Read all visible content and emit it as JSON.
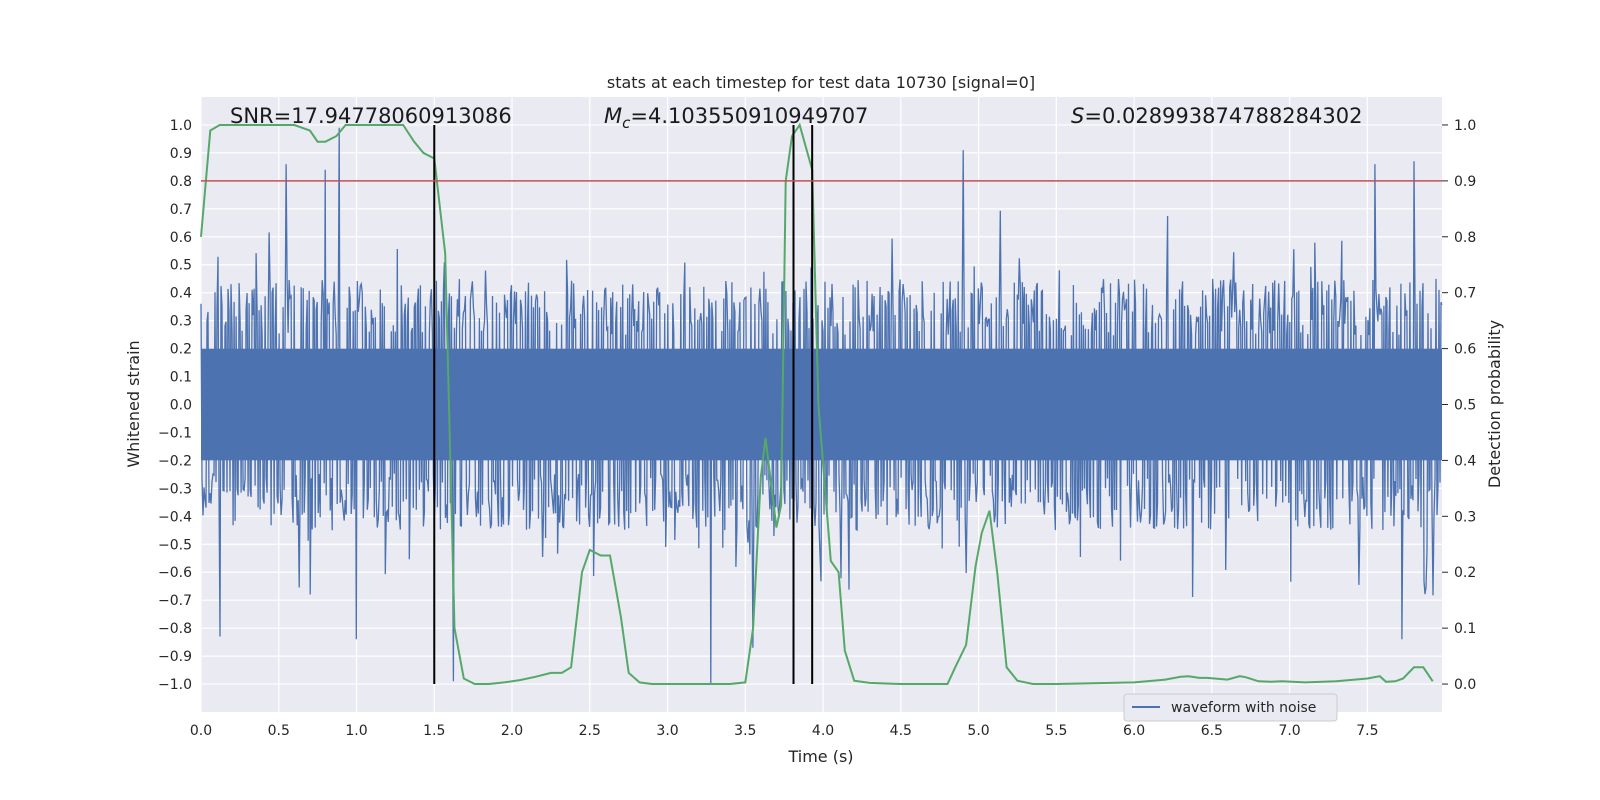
{
  "chart_data": {
    "type": "line",
    "title": "stats at each timestep for test data 10730 [signal=0]",
    "xlabel": "Time (s)",
    "ylabel": "Whitened strain",
    "y2label": "Detection probability",
    "xlim": [
      0.0,
      7.98
    ],
    "ylim": [
      -1.1,
      1.1
    ],
    "y2lim": [
      -0.05,
      1.05
    ],
    "xticks": [
      "0.0",
      "0.5",
      "1.0",
      "1.5",
      "2.0",
      "2.5",
      "3.0",
      "3.5",
      "4.0",
      "4.5",
      "5.0",
      "5.5",
      "6.0",
      "6.5",
      "7.0",
      "7.5"
    ],
    "xtick_values": [
      0,
      0.5,
      1,
      1.5,
      2,
      2.5,
      3,
      3.5,
      4,
      4.5,
      5,
      5.5,
      6,
      6.5,
      7,
      7.5
    ],
    "yticks": [
      "1.0",
      "0.9",
      "0.8",
      "0.7",
      "0.6",
      "0.5",
      "0.4",
      "0.3",
      "0.2",
      "0.1",
      "0.0",
      "−0.1",
      "−0.2",
      "−0.3",
      "−0.4",
      "−0.5",
      "−0.6",
      "−0.7",
      "−0.8",
      "−0.9",
      "−1.0"
    ],
    "ytick_values": [
      1.0,
      0.9,
      0.8,
      0.7,
      0.6,
      0.5,
      0.4,
      0.3,
      0.2,
      0.1,
      0.0,
      -0.1,
      -0.2,
      -0.3,
      -0.4,
      -0.5,
      -0.6,
      -0.7,
      -0.8,
      -0.9,
      -1.0
    ],
    "y2ticks": [
      "1.0",
      "0.9",
      "0.8",
      "0.7",
      "0.6",
      "0.5",
      "0.4",
      "0.3",
      "0.2",
      "0.1",
      "0.0"
    ],
    "y2tick_values": [
      1.0,
      0.9,
      0.8,
      0.7,
      0.6,
      0.5,
      0.4,
      0.3,
      0.2,
      0.1,
      0.0
    ],
    "grid": true,
    "legend_position": "lower-right",
    "annotations": {
      "snr": "SNR=17.94778060913086",
      "mc_symbol": "M",
      "mc_sub": "c",
      "mc_value": "=4.103550910949707",
      "s_symbol": "S",
      "s_value": "=0.028993874788284302"
    },
    "threshold": {
      "value": 0.9,
      "axis": "right",
      "color": "#c44e52"
    },
    "vertical_markers": [
      1.5,
      3.81,
      3.93
    ],
    "series": [
      {
        "name": "waveform with noise",
        "color": "#4c72b0",
        "axis": "left",
        "description_values": {
          "duration": 7.98,
          "envelope_positive_approx": 0.45,
          "envelope_negative_approx": -0.45,
          "notable_peaks": [
            [
              0.55,
              0.86
            ],
            [
              0.89,
              0.99
            ],
            [
              4.9,
              0.91
            ],
            [
              7.8,
              0.87
            ],
            [
              7.55,
              0.86
            ],
            [
              0.8,
              0.84
            ]
          ],
          "notable_troughs": [
            [
              0.12,
              -0.83
            ],
            [
              1.0,
              -0.84
            ],
            [
              1.62,
              -0.99
            ],
            [
              3.28,
              -1.0
            ],
            [
              7.72,
              -0.84
            ],
            [
              3.55,
              -0.87
            ]
          ]
        }
      },
      {
        "color": "#55a868",
        "axis": "right",
        "x": [
          0.0,
          0.06,
          0.12,
          0.2,
          0.3,
          0.4,
          0.5,
          0.6,
          0.7,
          0.75,
          0.8,
          0.87,
          0.93,
          1.0,
          1.1,
          1.2,
          1.3,
          1.37,
          1.43,
          1.5,
          1.57,
          1.63,
          1.69,
          1.76,
          1.85,
          1.95,
          2.05,
          2.15,
          2.25,
          2.32,
          2.38,
          2.45,
          2.5,
          2.57,
          2.63,
          2.7,
          2.75,
          2.82,
          2.9,
          3.0,
          3.1,
          3.2,
          3.3,
          3.4,
          3.5,
          3.55,
          3.6,
          3.63,
          3.67,
          3.7,
          3.73,
          3.76,
          3.8,
          3.85,
          3.89,
          3.93,
          3.97,
          4.05,
          4.1,
          4.14,
          4.2,
          4.3,
          4.5,
          4.7,
          4.8,
          4.85,
          4.92,
          4.98,
          5.02,
          5.07,
          5.12,
          5.18,
          5.25,
          5.35,
          5.5,
          6.0,
          6.2,
          6.3,
          6.35,
          6.42,
          6.47,
          6.6,
          6.68,
          6.72,
          6.8,
          6.88,
          6.95,
          7.1,
          7.3,
          7.5,
          7.58,
          7.62,
          7.68,
          7.73,
          7.8,
          7.86,
          7.92
        ],
        "values": [
          0.8,
          0.99,
          1.0,
          1.0,
          1.0,
          1.0,
          1.0,
          1.0,
          0.99,
          0.97,
          0.97,
          0.98,
          1.0,
          1.0,
          1.0,
          1.0,
          1.0,
          0.97,
          0.95,
          0.94,
          0.77,
          0.1,
          0.01,
          0.0,
          0.0,
          0.003,
          0.007,
          0.013,
          0.02,
          0.02,
          0.03,
          0.2,
          0.24,
          0.23,
          0.23,
          0.12,
          0.02,
          0.003,
          0.0,
          0.0,
          0.0,
          0.0,
          0.0,
          0.0,
          0.003,
          0.1,
          0.37,
          0.44,
          0.35,
          0.28,
          0.32,
          0.9,
          0.98,
          1.0,
          0.96,
          0.92,
          0.5,
          0.22,
          0.2,
          0.06,
          0.006,
          0.002,
          0.0,
          0.0,
          0.0,
          0.03,
          0.07,
          0.21,
          0.27,
          0.31,
          0.2,
          0.03,
          0.006,
          0.0,
          0.0,
          0.003,
          0.008,
          0.013,
          0.014,
          0.011,
          0.011,
          0.008,
          0.014,
          0.012,
          0.005,
          0.004,
          0.005,
          0.003,
          0.005,
          0.01,
          0.014,
          0.004,
          0.005,
          0.01,
          0.03,
          0.03,
          0.005
        ]
      }
    ]
  }
}
